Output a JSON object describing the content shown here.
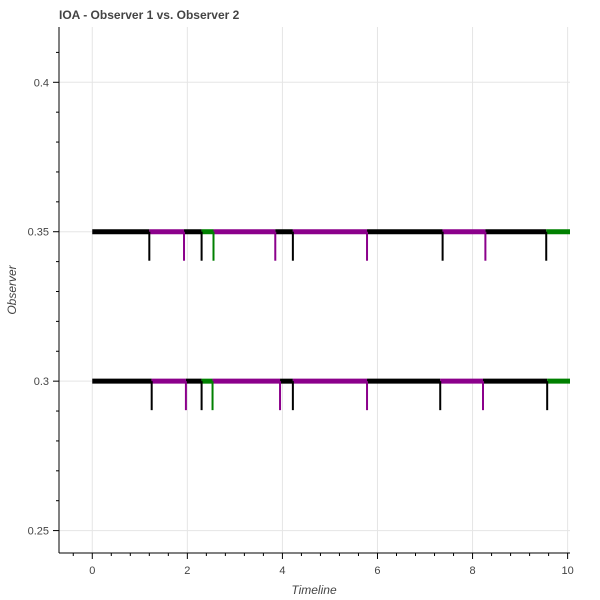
{
  "chart_data": {
    "type": "timeline",
    "title": "IOA - Observer 1 vs. Observer 2",
    "xlabel": "Timeline",
    "ylabel": "Observer",
    "xlim": [
      -0.7,
      10.05
    ],
    "ylim": [
      0.2425,
      0.4185
    ],
    "x_ticks": [
      0,
      2,
      4,
      6,
      8,
      10
    ],
    "y_ticks": [
      0.25,
      0.3,
      0.35,
      0.4
    ],
    "grid": true,
    "colors": {
      "black": "#000000",
      "purple": "#8b008b",
      "green": "#008000"
    },
    "rows": [
      {
        "y": 0.35,
        "segments": [
          {
            "x0": 0.0,
            "x1": 1.2,
            "color": "black"
          },
          {
            "x0": 1.2,
            "x1": 1.93,
            "color": "purple"
          },
          {
            "x0": 1.93,
            "x1": 2.3,
            "color": "black"
          },
          {
            "x0": 2.3,
            "x1": 2.55,
            "color": "green"
          },
          {
            "x0": 2.55,
            "x1": 3.85,
            "color": "purple"
          },
          {
            "x0": 3.85,
            "x1": 4.22,
            "color": "black"
          },
          {
            "x0": 4.22,
            "x1": 5.78,
            "color": "purple"
          },
          {
            "x0": 5.78,
            "x1": 7.37,
            "color": "black"
          },
          {
            "x0": 7.37,
            "x1": 8.27,
            "color": "purple"
          },
          {
            "x0": 8.27,
            "x1": 9.55,
            "color": "black"
          },
          {
            "x0": 9.55,
            "x1": 10.05,
            "color": "green"
          }
        ],
        "markers": [
          {
            "x": 1.2,
            "color": "black"
          },
          {
            "x": 1.93,
            "color": "purple"
          },
          {
            "x": 2.3,
            "color": "black"
          },
          {
            "x": 2.55,
            "color": "green"
          },
          {
            "x": 3.85,
            "color": "purple"
          },
          {
            "x": 4.22,
            "color": "black"
          },
          {
            "x": 5.78,
            "color": "purple"
          },
          {
            "x": 7.37,
            "color": "black"
          },
          {
            "x": 8.27,
            "color": "purple"
          },
          {
            "x": 9.55,
            "color": "black"
          }
        ]
      },
      {
        "y": 0.3,
        "segments": [
          {
            "x0": 0.0,
            "x1": 1.25,
            "color": "black"
          },
          {
            "x0": 1.25,
            "x1": 1.97,
            "color": "purple"
          },
          {
            "x0": 1.97,
            "x1": 2.3,
            "color": "black"
          },
          {
            "x0": 2.3,
            "x1": 2.53,
            "color": "green"
          },
          {
            "x0": 2.53,
            "x1": 3.95,
            "color": "purple"
          },
          {
            "x0": 3.95,
            "x1": 4.22,
            "color": "black"
          },
          {
            "x0": 4.22,
            "x1": 5.78,
            "color": "purple"
          },
          {
            "x0": 5.78,
            "x1": 7.32,
            "color": "black"
          },
          {
            "x0": 7.32,
            "x1": 8.22,
            "color": "purple"
          },
          {
            "x0": 8.22,
            "x1": 9.57,
            "color": "black"
          },
          {
            "x0": 9.57,
            "x1": 10.05,
            "color": "green"
          }
        ],
        "markers": [
          {
            "x": 1.25,
            "color": "black"
          },
          {
            "x": 1.97,
            "color": "purple"
          },
          {
            "x": 2.3,
            "color": "black"
          },
          {
            "x": 2.53,
            "color": "green"
          },
          {
            "x": 3.95,
            "color": "purple"
          },
          {
            "x": 4.22,
            "color": "black"
          },
          {
            "x": 5.78,
            "color": "purple"
          },
          {
            "x": 7.32,
            "color": "black"
          },
          {
            "x": 8.22,
            "color": "purple"
          },
          {
            "x": 9.57,
            "color": "black"
          }
        ]
      }
    ]
  }
}
